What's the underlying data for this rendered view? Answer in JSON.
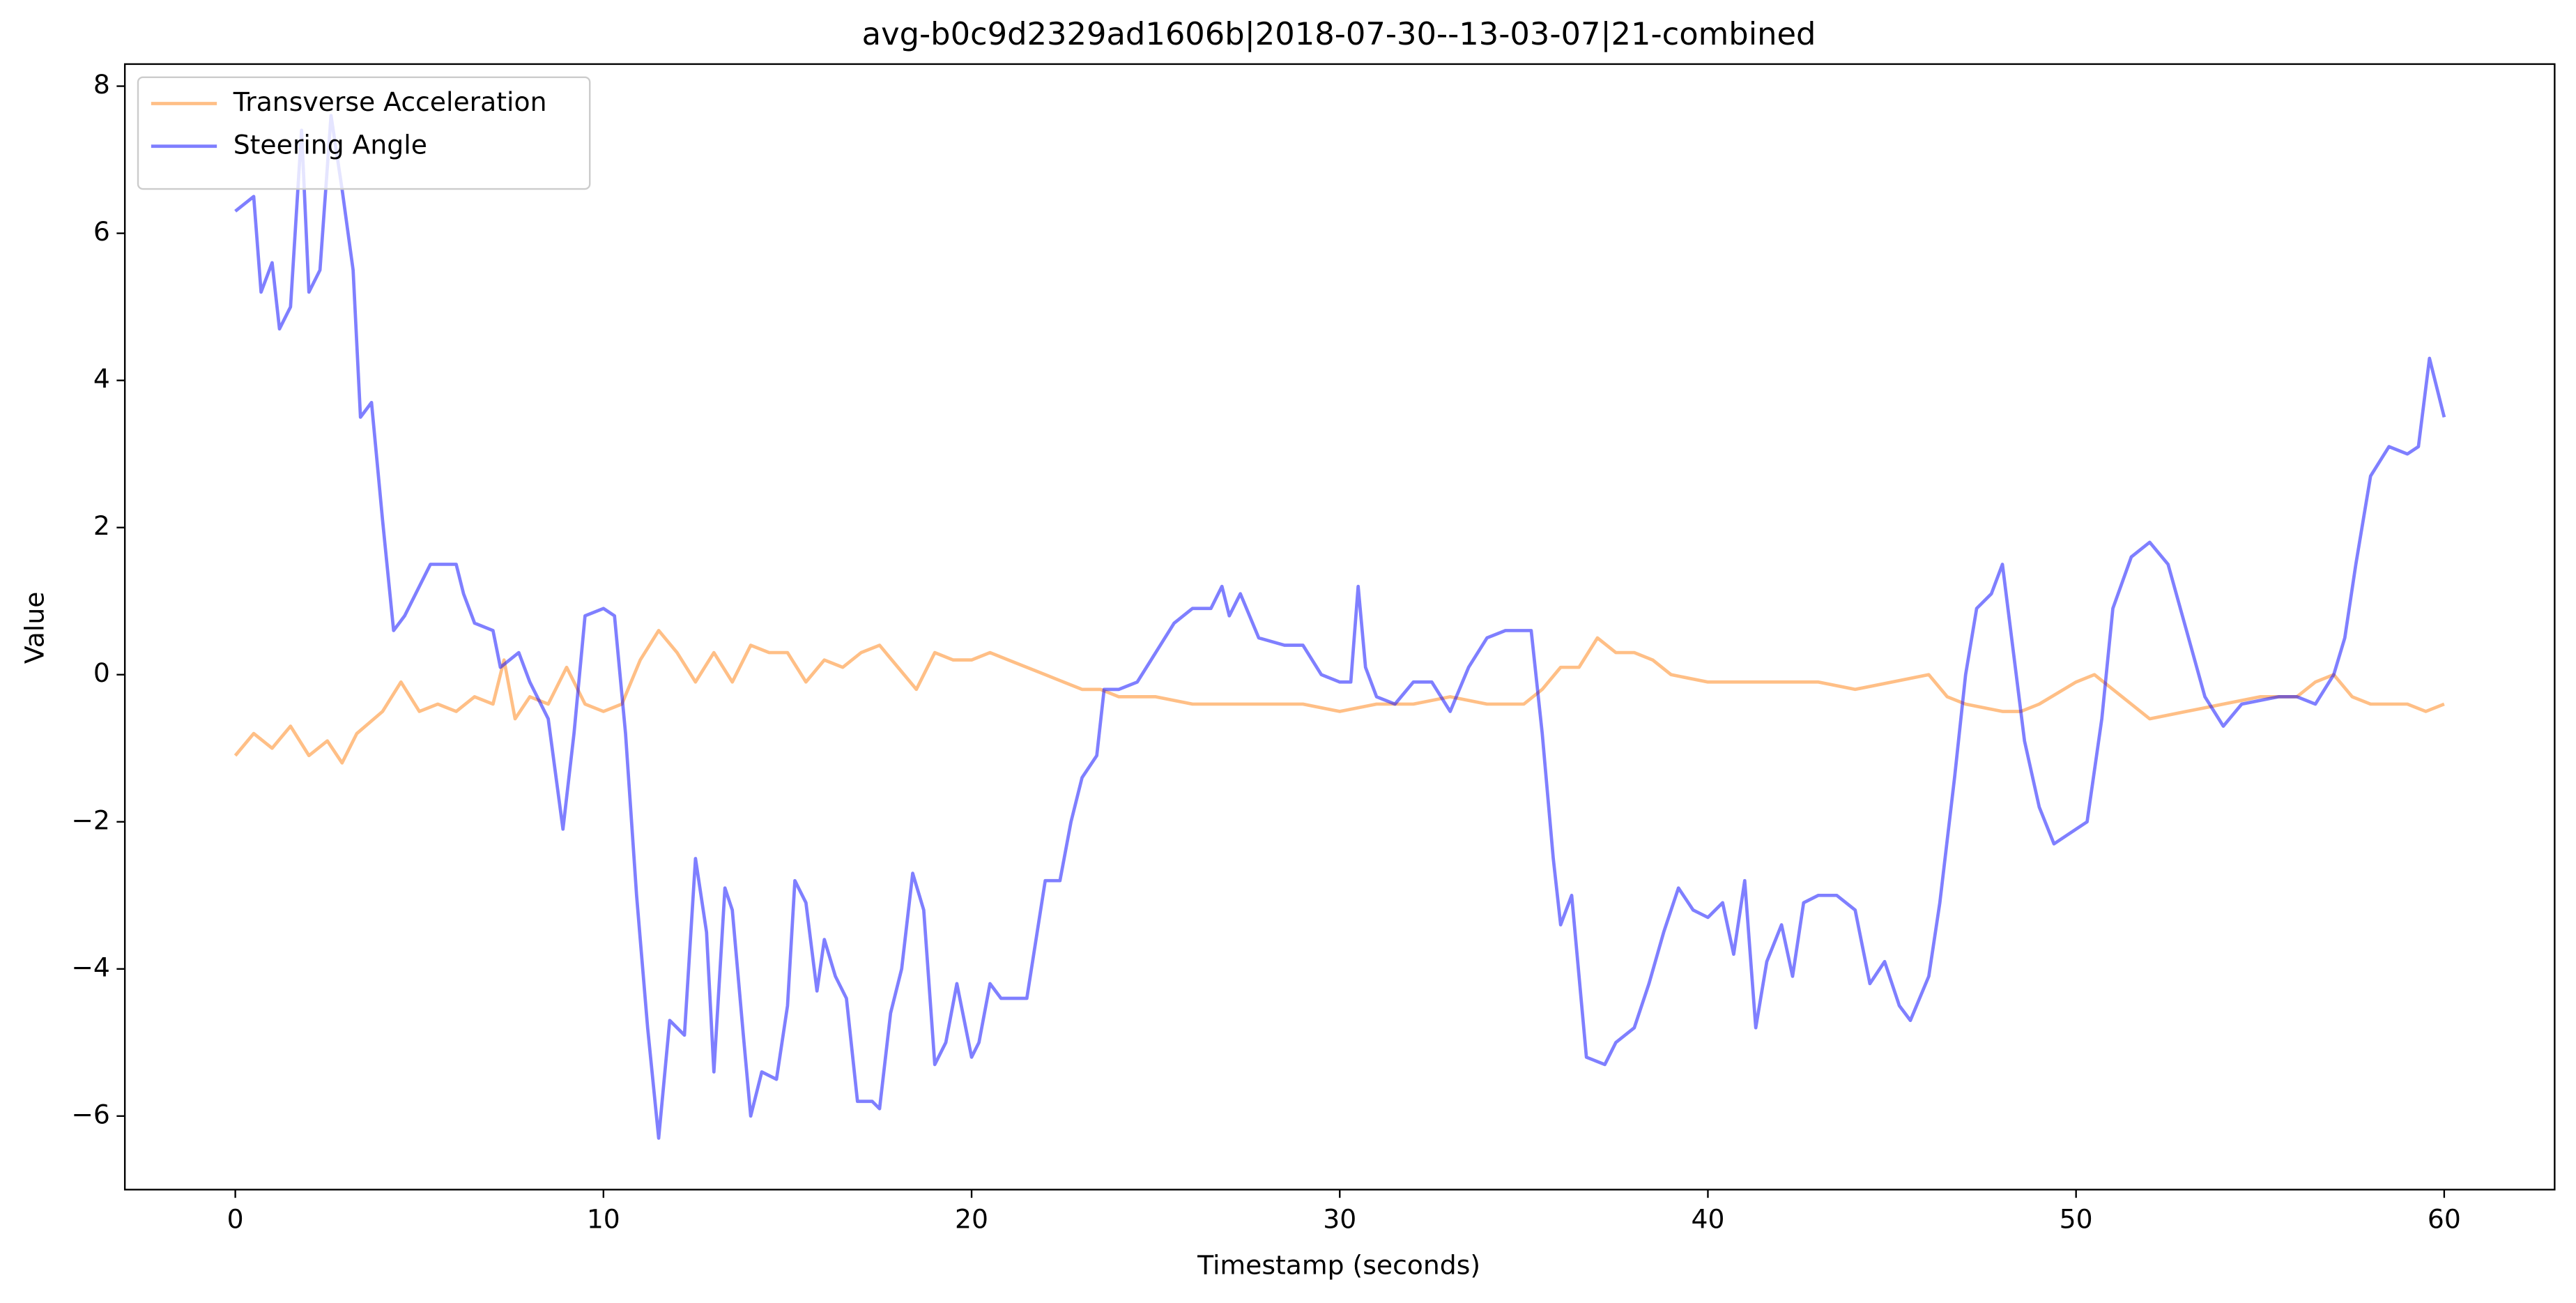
{
  "chart_data": {
    "type": "line",
    "title": "avg-b0c9d2329ad1606b|2018-07-30--13-03-07|21-combined",
    "x_label": "Timestamp (seconds)",
    "y_label": "Value",
    "xlim": [
      -3,
      63
    ],
    "ylim": [
      -7,
      8.3
    ],
    "xticks": [
      0,
      10,
      20,
      30,
      40,
      50,
      60
    ],
    "yticks": [
      {
        "value": -6,
        "label": "−6"
      },
      {
        "value": -4,
        "label": "−4"
      },
      {
        "value": -2,
        "label": "−2"
      },
      0,
      2,
      4,
      6,
      8
    ],
    "legend": "upper left",
    "grid": false,
    "series": [
      {
        "name": "Transverse Acceleration",
        "color": "#ff7f0e",
        "x": [
          0,
          0.5,
          1,
          1.5,
          2,
          2.5,
          2.9,
          3.3,
          4,
          4.5,
          5,
          5.5,
          6,
          6.5,
          7,
          7.3,
          7.6,
          8,
          8.5,
          9,
          9.5,
          10,
          10.5,
          11,
          11.5,
          12,
          12.5,
          13,
          13.5,
          14,
          14.5,
          15,
          15.5,
          16,
          16.5,
          17,
          17.5,
          18,
          18.5,
          19,
          19.5,
          20,
          20.5,
          21,
          21.5,
          22,
          22.5,
          23,
          23.5,
          24,
          25,
          26,
          27,
          28,
          29,
          30,
          31,
          32,
          33,
          34,
          35,
          35.5,
          36,
          36.5,
          37,
          37.5,
          38,
          38.5,
          39,
          40,
          41,
          42,
          43,
          44,
          45,
          46,
          46.5,
          47,
          48,
          48.5,
          49,
          50,
          50.5,
          51,
          51.5,
          52,
          53,
          54,
          55,
          55.5,
          56,
          56.5,
          57,
          57.5,
          58,
          59,
          59.5,
          60
        ],
        "values": [
          -1.1,
          -0.8,
          -1.0,
          -0.7,
          -1.1,
          -0.9,
          -1.2,
          -0.8,
          -0.5,
          -0.1,
          -0.5,
          -0.4,
          -0.5,
          -0.3,
          -0.4,
          0.2,
          -0.6,
          -0.3,
          -0.4,
          0.1,
          -0.4,
          -0.5,
          -0.4,
          0.2,
          0.6,
          0.3,
          -0.1,
          0.3,
          -0.1,
          0.4,
          0.3,
          0.3,
          -0.1,
          0.2,
          0.1,
          0.3,
          0.4,
          0.1,
          -0.2,
          0.3,
          0.2,
          0.2,
          0.3,
          0.2,
          0.1,
          0.0,
          -0.1,
          -0.2,
          -0.2,
          -0.3,
          -0.3,
          -0.4,
          -0.4,
          -0.4,
          -0.4,
          -0.5,
          -0.4,
          -0.4,
          -0.3,
          -0.4,
          -0.4,
          -0.2,
          0.1,
          0.1,
          0.5,
          0.3,
          0.3,
          0.2,
          0.0,
          -0.1,
          -0.1,
          -0.1,
          -0.1,
          -0.2,
          -0.1,
          0.0,
          -0.3,
          -0.4,
          -0.5,
          -0.5,
          -0.4,
          -0.1,
          0.0,
          -0.2,
          -0.4,
          -0.6,
          -0.5,
          -0.4,
          -0.3,
          -0.3,
          -0.3,
          -0.1,
          0.0,
          -0.3,
          -0.4,
          -0.4,
          -0.5,
          -0.4
        ]
      },
      {
        "name": "Steering Angle",
        "color": "#0000ff",
        "x": [
          0,
          0.5,
          0.7,
          1,
          1.2,
          1.5,
          1.8,
          2,
          2.3,
          2.6,
          2.9,
          3.2,
          3.4,
          3.7,
          4,
          4.3,
          4.6,
          5,
          5.3,
          6,
          6.2,
          6.5,
          7,
          7.2,
          7.7,
          8,
          8.5,
          8.9,
          9.2,
          9.5,
          10,
          10.3,
          10.6,
          10.9,
          11.2,
          11.5,
          11.8,
          12.2,
          12.5,
          12.8,
          13,
          13.3,
          13.5,
          13.8,
          14,
          14.3,
          14.7,
          15,
          15.2,
          15.5,
          15.8,
          16,
          16.3,
          16.6,
          16.9,
          17.3,
          17.5,
          17.8,
          18.1,
          18.4,
          18.7,
          19,
          19.3,
          19.6,
          20,
          20.2,
          20.5,
          20.8,
          21.5,
          22,
          22.4,
          22.7,
          23,
          23.4,
          23.6,
          24,
          24.5,
          25,
          25.5,
          26,
          26.5,
          26.8,
          27,
          27.3,
          27.8,
          28.5,
          29,
          29.5,
          30,
          30.3,
          30.5,
          30.7,
          31,
          31.5,
          32,
          32.5,
          33,
          33.5,
          34,
          34.5,
          35.2,
          35.5,
          35.8,
          36,
          36.3,
          36.7,
          37.2,
          37.5,
          38,
          38.4,
          38.8,
          39.2,
          39.6,
          40,
          40.4,
          40.7,
          41,
          41.3,
          41.6,
          42,
          42.3,
          42.6,
          43,
          43.5,
          44,
          44.4,
          44.8,
          45.2,
          45.5,
          46,
          46.3,
          46.7,
          47,
          47.3,
          47.7,
          48,
          48.3,
          48.6,
          49,
          49.4,
          50,
          50.3,
          50.7,
          51,
          51.5,
          52,
          52.5,
          53,
          53.5,
          54,
          54.5,
          55.5,
          56,
          56.5,
          57,
          57.3,
          57.6,
          58,
          58.5,
          59,
          59.3,
          59.6,
          60
        ],
        "values": [
          6.3,
          6.5,
          5.2,
          5.6,
          4.7,
          5.0,
          7.4,
          5.2,
          5.5,
          7.6,
          6.6,
          5.5,
          3.5,
          3.7,
          2.1,
          0.6,
          0.8,
          1.2,
          1.5,
          1.5,
          1.1,
          0.7,
          0.6,
          0.1,
          0.3,
          -0.1,
          -0.6,
          -2.1,
          -0.8,
          0.8,
          0.9,
          0.8,
          -0.8,
          -3.0,
          -4.8,
          -6.3,
          -4.7,
          -4.9,
          -2.5,
          -3.5,
          -5.4,
          -2.9,
          -3.2,
          -4.9,
          -6.0,
          -5.4,
          -5.5,
          -4.5,
          -2.8,
          -3.1,
          -4.3,
          -3.6,
          -4.1,
          -4.4,
          -5.8,
          -5.8,
          -5.9,
          -4.6,
          -4.0,
          -2.7,
          -3.2,
          -5.3,
          -5.0,
          -4.2,
          -5.2,
          -5.0,
          -4.2,
          -4.4,
          -4.4,
          -2.8,
          -2.8,
          -2.0,
          -1.4,
          -1.1,
          -0.2,
          -0.2,
          -0.1,
          0.3,
          0.7,
          0.9,
          0.9,
          1.2,
          0.8,
          1.1,
          0.5,
          0.4,
          0.4,
          0.0,
          -0.1,
          -0.1,
          1.2,
          0.1,
          -0.3,
          -0.4,
          -0.1,
          -0.1,
          -0.5,
          0.1,
          0.5,
          0.6,
          0.6,
          -0.8,
          -2.5,
          -3.4,
          -3.0,
          -5.2,
          -5.3,
          -5.0,
          -4.8,
          -4.2,
          -3.5,
          -2.9,
          -3.2,
          -3.3,
          -3.1,
          -3.8,
          -2.8,
          -4.8,
          -3.9,
          -3.4,
          -4.1,
          -3.1,
          -3.0,
          -3.0,
          -3.2,
          -4.2,
          -3.9,
          -4.5,
          -4.7,
          -4.1,
          -3.1,
          -1.4,
          0.0,
          0.9,
          1.1,
          1.5,
          0.3,
          -0.9,
          -1.8,
          -2.3,
          -2.1,
          -2.0,
          -0.6,
          0.9,
          1.6,
          1.8,
          1.5,
          0.6,
          -0.3,
          -0.7,
          -0.4,
          -0.3,
          -0.3,
          -0.4,
          0.0,
          0.5,
          1.5,
          2.7,
          3.1,
          3.0,
          3.1,
          4.3,
          3.5
        ]
      }
    ]
  }
}
